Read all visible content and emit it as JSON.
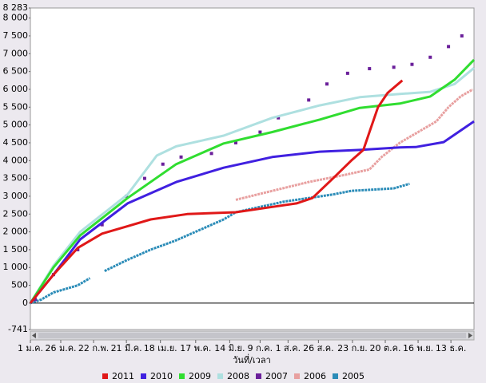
{
  "chart_data": {
    "type": "line",
    "x_label": "วันที่/เวลา",
    "xlim": [
      1,
      366
    ],
    "xticks": [
      {
        "value": 1,
        "label": "1 ม.ค."
      },
      {
        "value": 26,
        "label": "26 ม.ค."
      },
      {
        "value": 53,
        "label": "22 ก.พ."
      },
      {
        "value": 80,
        "label": "21 มี.ค."
      },
      {
        "value": 108,
        "label": "18 เม.ย."
      },
      {
        "value": 137,
        "label": "17 พ.ค."
      },
      {
        "value": 165,
        "label": "14 มิ.ย."
      },
      {
        "value": 190,
        "label": "9 ก.ค."
      },
      {
        "value": 213,
        "label": "1 ส.ค."
      },
      {
        "value": 238,
        "label": "26 ส.ค."
      },
      {
        "value": 266,
        "label": "23 ก.ย."
      },
      {
        "value": 293,
        "label": "20 ต.ค."
      },
      {
        "value": 320,
        "label": "16 พ.ย."
      },
      {
        "value": 347,
        "label": "13 ธ.ค."
      }
    ],
    "ylim": [
      -741,
      8283
    ],
    "yticks": [
      -741,
      0,
      500,
      {
        "value": 1000,
        "label": "1 000"
      },
      {
        "value": 1500,
        "label": "1 500"
      },
      {
        "value": 2000,
        "label": "2 000"
      },
      {
        "value": 2500,
        "label": "2 500"
      },
      {
        "value": 3000,
        "label": "3 000"
      },
      {
        "value": 3500,
        "label": "3 500"
      },
      {
        "value": 4000,
        "label": "4 000"
      },
      {
        "value": 4500,
        "label": "4 500"
      },
      {
        "value": 5000,
        "label": "5 000"
      },
      {
        "value": 5500,
        "label": "5 500"
      },
      {
        "value": 6000,
        "label": "6 000"
      },
      {
        "value": 6500,
        "label": "6 500"
      },
      {
        "value": 7000,
        "label": "7 000"
      },
      {
        "value": 7500,
        "label": "7 500"
      },
      {
        "value": 8000,
        "label": "8 000"
      },
      {
        "value": 8283,
        "label": "8 283"
      }
    ],
    "series": [
      {
        "name": "2011",
        "color": "#e01818",
        "mode": "lines",
        "x": [
          1,
          20,
          40,
          60,
          80,
          100,
          130,
          170,
          200,
          220,
          233,
          250,
          265,
          275,
          280,
          287,
          295,
          307
        ],
        "values": [
          0,
          800,
          1550,
          1950,
          2150,
          2350,
          2500,
          2550,
          2700,
          2800,
          2950,
          3500,
          4000,
          4300,
          4800,
          5500,
          5900,
          6250
        ]
      },
      {
        "name": "2010",
        "color": "#4020e0",
        "mode": "lines",
        "x": [
          1,
          20,
          42,
          81,
          121,
          160,
          200,
          239,
          272,
          305,
          318,
          341,
          366
        ],
        "values": [
          0,
          800,
          1790,
          2800,
          3400,
          3800,
          4100,
          4250,
          4300,
          4370,
          4380,
          4520,
          5100
        ]
      },
      {
        "name": "2009",
        "color": "#30dd30",
        "mode": "lines",
        "x": [
          1,
          20,
          42,
          81,
          121,
          160,
          200,
          239,
          272,
          305,
          330,
          350,
          366
        ],
        "values": [
          0,
          1000,
          1900,
          2950,
          3900,
          4480,
          4800,
          5150,
          5480,
          5600,
          5800,
          6270,
          6830
        ]
      },
      {
        "name": "2008",
        "color": "#aee0e0",
        "mode": "lines",
        "x": [
          1,
          20,
          42,
          81,
          105,
          121,
          160,
          200,
          239,
          272,
          305,
          330,
          350,
          366
        ],
        "values": [
          0,
          1050,
          2000,
          3050,
          4140,
          4400,
          4700,
          5200,
          5550,
          5780,
          5870,
          5930,
          6150,
          6600
        ]
      },
      {
        "name": "2007",
        "color": "#6a1f9a",
        "mode": "markers",
        "x": [
          5,
          20,
          40,
          60,
          80,
          95,
          110,
          125,
          150,
          170,
          190,
          205,
          230,
          245,
          262,
          280,
          300,
          315,
          330,
          345,
          356
        ],
        "values": [
          100,
          800,
          1500,
          2200,
          3000,
          3500,
          3900,
          4100,
          4200,
          4500,
          4800,
          5200,
          5700,
          6150,
          6450,
          6580,
          6620,
          6700,
          6900,
          7200,
          7500
        ]
      },
      {
        "name": "2006",
        "color": "#e8a0a0",
        "mode": "lines",
        "x": [
          170,
          200,
          230,
          260,
          280,
          290,
          305,
          320,
          335,
          345,
          355,
          365
        ],
        "values": [
          2900,
          3150,
          3400,
          3600,
          3750,
          4100,
          4500,
          4800,
          5100,
          5500,
          5800,
          6000
        ]
      },
      {
        "name": "2005",
        "color": "#2b8cb8",
        "mode": "lines",
        "x": [
          1,
          10,
          20,
          40,
          50,
          56,
          62,
          80,
          100,
          120,
          140,
          160,
          170,
          190,
          210,
          230,
          250,
          265,
          280,
          300,
          313
        ],
        "values": [
          0,
          100,
          300,
          500,
          700,
          null,
          900,
          1200,
          1500,
          1750,
          2050,
          2350,
          2550,
          2700,
          2850,
          2950,
          3050,
          3150,
          3180,
          3220,
          3350
        ]
      }
    ]
  }
}
